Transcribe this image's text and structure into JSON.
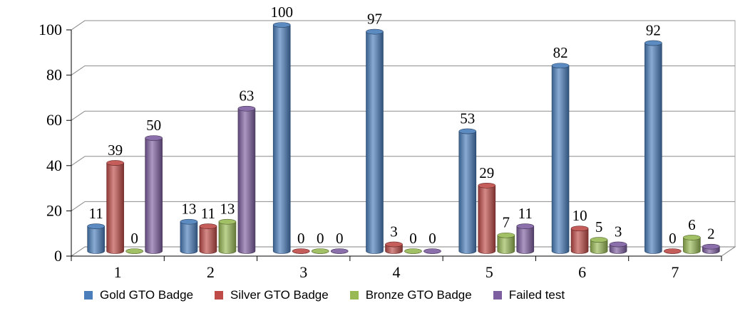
{
  "chart_data": {
    "type": "bar",
    "title": "",
    "xlabel": "",
    "ylabel": "",
    "ylim": [
      0,
      100
    ],
    "yticks": [
      "0",
      "20",
      "40",
      "60",
      "80",
      "100"
    ],
    "grid": true,
    "legend_position": "bottom",
    "categories": [
      "1",
      "2",
      "3",
      "4",
      "5",
      "6",
      "7"
    ],
    "series": [
      {
        "name": "Gold GTO Badge",
        "color": "#4a7ebb",
        "values": [
          11,
          13,
          100,
          97,
          53,
          82,
          92
        ]
      },
      {
        "name": "Silver GTO Badge",
        "color": "#be4b48",
        "values": [
          39,
          11,
          0,
          3,
          29,
          10,
          0
        ]
      },
      {
        "name": "Bronze GTO Badge",
        "color": "#98b954",
        "values": [
          0,
          13,
          0,
          0,
          7,
          5,
          6
        ]
      },
      {
        "name": "Failed test",
        "color": "#7d5fa0",
        "values": [
          50,
          63,
          0,
          0,
          11,
          3,
          2
        ]
      }
    ]
  }
}
